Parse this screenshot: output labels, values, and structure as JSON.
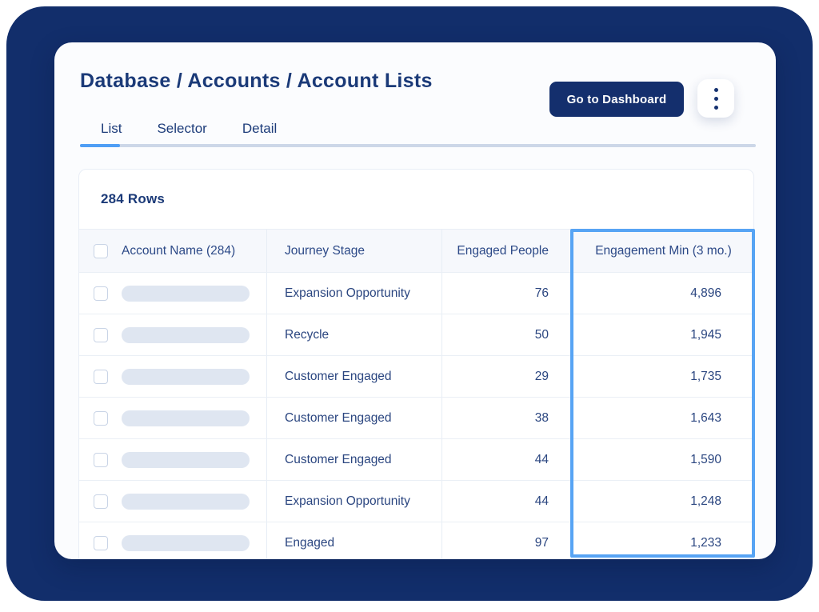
{
  "header": {
    "title": "Database / Accounts / Account Lists",
    "dashboard_button": "Go to Dashboard",
    "more_options_icon": "kebab-menu-icon"
  },
  "tabs": [
    {
      "label": "List",
      "active": true
    },
    {
      "label": "Selector",
      "active": false
    },
    {
      "label": "Detail",
      "active": false
    }
  ],
  "table": {
    "rows_count_label": "284 Rows",
    "columns": [
      "Account Name (284)",
      "Journey Stage",
      "Engaged People",
      "Engagement Min (3 mo.)"
    ],
    "highlighted_column": "Engagement Min (3 mo.)",
    "rows": [
      {
        "journey_stage": "Expansion Opportunity",
        "engaged_people": "76",
        "engagement_min": "4,896"
      },
      {
        "journey_stage": "Recycle",
        "engaged_people": "50",
        "engagement_min": "1,945"
      },
      {
        "journey_stage": "Customer Engaged",
        "engaged_people": "29",
        "engagement_min": "1,735"
      },
      {
        "journey_stage": "Customer Engaged",
        "engaged_people": "38",
        "engagement_min": "1,643"
      },
      {
        "journey_stage": "Customer Engaged",
        "engaged_people": "44",
        "engagement_min": "1,590"
      },
      {
        "journey_stage": "Expansion Opportunity",
        "engaged_people": "44",
        "engagement_min": "1,248"
      },
      {
        "journey_stage": "Engaged",
        "engaged_people": "97",
        "engagement_min": "1,233"
      }
    ]
  },
  "colors": {
    "frame_navy": "#122e6b",
    "button_navy": "#142f6d",
    "text_navy": "#1b3a78",
    "accent_blue": "#4f9ef5",
    "highlight_border": "#57a4f4",
    "tab_track": "#ccd7e8",
    "header_row_bg": "#f6f8fc",
    "placeholder_pill": "#dfe6f1"
  }
}
